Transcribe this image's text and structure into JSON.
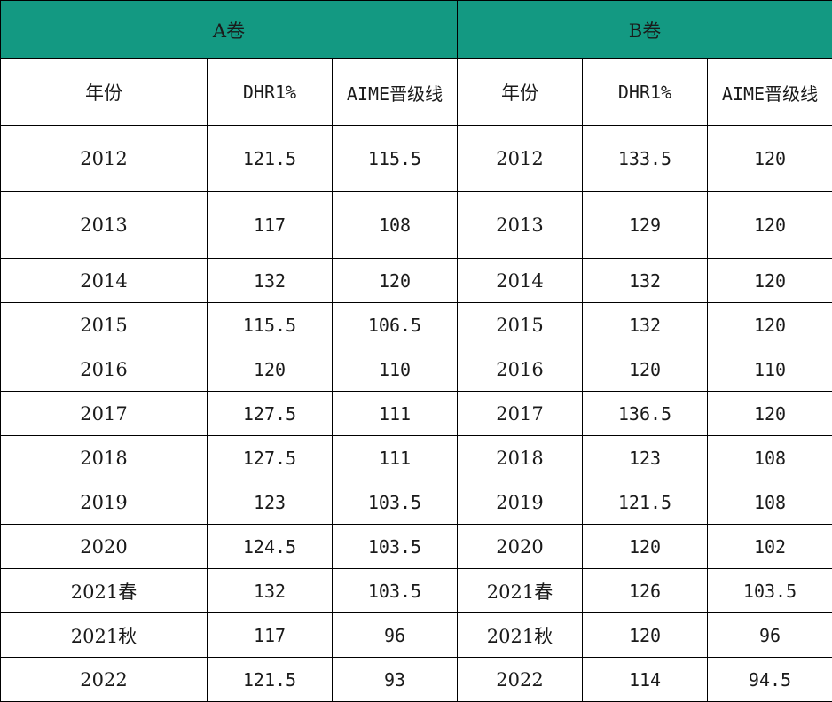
{
  "groups": {
    "a": "A卷",
    "b": "B卷"
  },
  "columns": [
    "年份",
    "DHR1%",
    "AIME晋级线",
    "年份",
    "DHR1%",
    "AIME晋级线"
  ],
  "rows": [
    [
      "2012",
      "121.5",
      "115.5",
      "2012",
      "133.5",
      "120"
    ],
    [
      "2013",
      "117",
      "108",
      "2013",
      "129",
      "120"
    ],
    [
      "2014",
      "132",
      "120",
      "2014",
      "132",
      "120"
    ],
    [
      "2015",
      "115.5",
      "106.5",
      "2015",
      "132",
      "120"
    ],
    [
      "2016",
      "120",
      "110",
      "2016",
      "120",
      "110"
    ],
    [
      "2017",
      "127.5",
      "111",
      "2017",
      "136.5",
      "120"
    ],
    [
      "2018",
      "127.5",
      "111",
      "2018",
      "123",
      "108"
    ],
    [
      "2019",
      "123",
      "103.5",
      "2019",
      "121.5",
      "108"
    ],
    [
      "2020",
      "124.5",
      "103.5",
      "2020",
      "120",
      "102"
    ],
    [
      "2021春",
      "132",
      "103.5",
      "2021春",
      "126",
      "103.5"
    ],
    [
      "2021秋",
      "117",
      "96",
      "2021秋",
      "120",
      "96"
    ],
    [
      "2022",
      "121.5",
      "93",
      "2022",
      "114",
      "94.5"
    ]
  ],
  "colors": {
    "header_bg": "#139982",
    "border": "#000000"
  }
}
